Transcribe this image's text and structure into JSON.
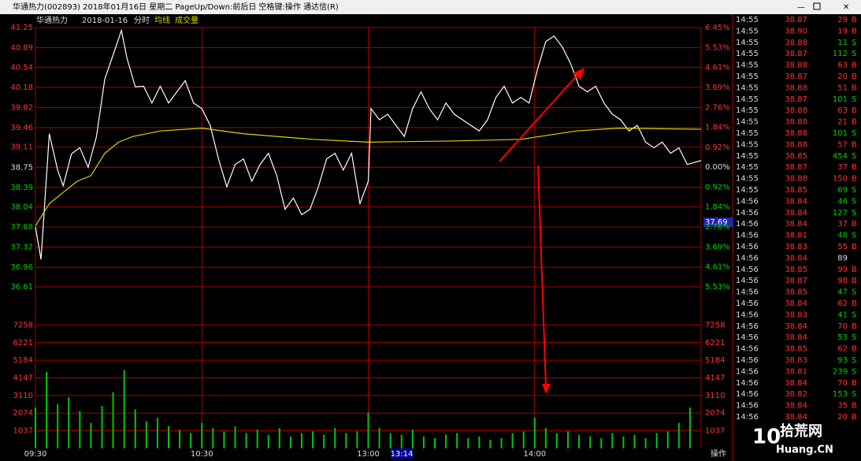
{
  "window_title": "华通热力(002893) 2018年01月16日 星期二 PageUp/Down:前后日 空格键:操作 通达信(R)",
  "legend": {
    "name": "华通热力",
    "date": "2018-01-16",
    "mode": "分时",
    "avg_label": "均线",
    "vol_label": "成交量"
  },
  "cursor_time": "13:14",
  "price_marker": "37.69",
  "op_button": "操作",
  "watermark": {
    "num": "10",
    "text": "拾荒网",
    "site": "Huang.CN"
  },
  "chart_data": [
    {
      "type": "line",
      "xlim": [
        0,
        240
      ],
      "xticks": [
        {
          "value": 0,
          "label": "09:30"
        },
        {
          "value": 60,
          "label": "10:30"
        },
        {
          "value": 120,
          "label": "13:00"
        },
        {
          "value": 180,
          "label": "14:00"
        }
      ],
      "ylim": [
        36.61,
        41.25
      ],
      "yticks": [
        41.25,
        40.89,
        40.54,
        40.18,
        39.82,
        39.46,
        39.11,
        38.75,
        38.39,
        38.04,
        37.68,
        37.32,
        36.96,
        36.61
      ],
      "y2lim": [
        -5.53,
        6.45
      ],
      "y2ticks": [
        {
          "value": 6.45,
          "label": "6.45%"
        },
        {
          "value": 5.53,
          "label": "5.53%"
        },
        {
          "value": 4.61,
          "label": "4.61%"
        },
        {
          "value": 3.69,
          "label": "3.69%"
        },
        {
          "value": 2.76,
          "label": "2.76%"
        },
        {
          "value": 1.84,
          "label": "1.84%"
        },
        {
          "value": 0.92,
          "label": "0.92%"
        },
        {
          "value": 0,
          "label": "0.00%"
        },
        {
          "value": -0.92,
          "label": "0.92%"
        },
        {
          "value": -1.84,
          "label": "1.84%"
        },
        {
          "value": -2.76,
          "label": "2.76%"
        },
        {
          "value": -3.69,
          "label": "3.69%"
        },
        {
          "value": -4.61,
          "label": "4.61%"
        },
        {
          "value": -5.53,
          "label": "5.53%"
        }
      ],
      "series": [
        {
          "name": "price",
          "color": "#ffffff",
          "x": [
            0,
            2,
            5,
            8,
            10,
            13,
            16,
            19,
            22,
            25,
            28,
            31,
            33,
            36,
            39,
            42,
            45,
            48,
            51,
            54,
            57,
            60,
            63,
            66,
            69,
            72,
            75,
            78,
            81,
            84,
            87,
            90,
            93,
            96,
            99,
            102,
            105,
            108,
            111,
            114,
            117,
            120,
            121,
            124,
            127,
            130,
            133,
            136,
            139,
            142,
            145,
            148,
            151,
            154,
            157,
            160,
            163,
            166,
            169,
            172,
            175,
            178,
            181,
            184,
            187,
            190,
            193,
            196,
            199,
            202,
            205,
            208,
            211,
            214,
            217,
            220,
            223,
            226,
            229,
            232,
            235,
            240
          ],
          "values": [
            37.68,
            37.1,
            39.35,
            38.7,
            38.42,
            38.99,
            39.1,
            38.75,
            39.3,
            40.33,
            40.76,
            41.2,
            40.7,
            40.19,
            40.2,
            39.9,
            40.2,
            39.9,
            40.1,
            40.3,
            39.9,
            39.8,
            39.5,
            38.9,
            38.4,
            38.8,
            38.9,
            38.5,
            38.8,
            39.0,
            38.6,
            38.0,
            38.2,
            37.9,
            38.0,
            38.4,
            38.9,
            39.0,
            38.7,
            39.0,
            38.1,
            38.5,
            39.8,
            39.6,
            39.7,
            39.5,
            39.3,
            39.8,
            40.1,
            39.8,
            39.6,
            39.9,
            39.7,
            39.6,
            39.5,
            39.4,
            39.6,
            40.0,
            40.2,
            39.9,
            40.0,
            39.9,
            40.5,
            41.0,
            41.1,
            40.9,
            40.6,
            40.2,
            40.1,
            40.2,
            39.9,
            39.7,
            39.6,
            39.4,
            39.5,
            39.2,
            39.1,
            39.2,
            39.0,
            39.1,
            38.8,
            38.87
          ]
        },
        {
          "name": "均线",
          "color": "#d8d800",
          "x": [
            0,
            5,
            10,
            15,
            20,
            25,
            30,
            35,
            45,
            60,
            75,
            100,
            120,
            150,
            175,
            195,
            210,
            240
          ],
          "values": [
            37.7,
            38.1,
            38.3,
            38.5,
            38.6,
            39.0,
            39.2,
            39.3,
            39.4,
            39.45,
            39.35,
            39.25,
            39.2,
            39.22,
            39.25,
            39.4,
            39.45,
            39.43
          ]
        }
      ]
    },
    {
      "type": "bar",
      "color": "#00c800",
      "xlim": [
        0,
        240
      ],
      "ylim": [
        0,
        8295
      ],
      "yticks": [
        7258,
        6221,
        5184,
        4147,
        3110,
        2074,
        1037
      ],
      "x": [
        0,
        4,
        8,
        12,
        16,
        20,
        24,
        28,
        32,
        36,
        40,
        44,
        48,
        52,
        56,
        60,
        64,
        68,
        72,
        76,
        80,
        84,
        88,
        92,
        96,
        100,
        104,
        108,
        112,
        116,
        120,
        124,
        128,
        132,
        136,
        140,
        144,
        148,
        152,
        156,
        160,
        164,
        168,
        172,
        176,
        180,
        184,
        188,
        192,
        196,
        200,
        204,
        208,
        212,
        216,
        220,
        224,
        228,
        232,
        236
      ],
      "values": [
        2400,
        4500,
        2600,
        3000,
        2200,
        1500,
        2500,
        3300,
        4600,
        2300,
        1600,
        1800,
        1300,
        1100,
        900,
        1500,
        1200,
        1000,
        1300,
        900,
        1100,
        800,
        1200,
        700,
        900,
        1000,
        800,
        1200,
        900,
        1000,
        2100,
        1200,
        900,
        800,
        1100,
        700,
        600,
        800,
        900,
        600,
        700,
        500,
        600,
        900,
        1000,
        1800,
        1200,
        900,
        1000,
        800,
        700,
        600,
        900,
        700,
        800,
        600,
        900,
        1000,
        1500,
        2400
      ]
    }
  ],
  "trades": {
    "rows": [
      [
        "14:55",
        "38.87",
        "29",
        "B"
      ],
      [
        "14:55",
        "38.90",
        "19",
        "B"
      ],
      [
        "14:55",
        "38.88",
        "11",
        "S"
      ],
      [
        "14:55",
        "38.87",
        "112",
        "S"
      ],
      [
        "14:55",
        "38.88",
        "63",
        "B"
      ],
      [
        "14:55",
        "38.87",
        "20",
        "B"
      ],
      [
        "14:55",
        "38.88",
        "51",
        "B"
      ],
      [
        "14:55",
        "38.87",
        "101",
        "S"
      ],
      [
        "14:55",
        "38.88",
        "63",
        "B"
      ],
      [
        "14:55",
        "38.88",
        "21",
        "B"
      ],
      [
        "14:55",
        "38.88",
        "101",
        "S"
      ],
      [
        "14:55",
        "38.88",
        "57",
        "B"
      ],
      [
        "14:55",
        "38.85",
        "454",
        "S"
      ],
      [
        "14:55",
        "38.87",
        "37",
        "B"
      ],
      [
        "14:55",
        "38.88",
        "150",
        "B"
      ],
      [
        "14:55",
        "38.85",
        "69",
        "S"
      ],
      [
        "14:56",
        "38.84",
        "46",
        "S"
      ],
      [
        "14:56",
        "38.84",
        "127",
        "S"
      ],
      [
        "14:56",
        "38.84",
        "37",
        "B"
      ],
      [
        "14:56",
        "38.81",
        "48",
        "S"
      ],
      [
        "14:56",
        "38.83",
        "55",
        "B"
      ],
      [
        "14:56",
        "38.84",
        "89"
      ],
      [
        "14:56",
        "38.85",
        "99",
        "B"
      ],
      [
        "14:56",
        "38.87",
        "98",
        "B"
      ],
      [
        "14:56",
        "38.85",
        "47",
        "S"
      ],
      [
        "14:56",
        "38.84",
        "62",
        "B"
      ],
      [
        "14:56",
        "38.83",
        "41",
        "S"
      ],
      [
        "14:56",
        "38.84",
        "70",
        "B"
      ],
      [
        "14:56",
        "38.84",
        "53",
        "S"
      ],
      [
        "14:56",
        "38.85",
        "62",
        "B"
      ],
      [
        "14:56",
        "38.83",
        "93",
        "S"
      ],
      [
        "14:56",
        "38.81",
        "239",
        "S"
      ],
      [
        "14:56",
        "38.84",
        "70",
        "B"
      ],
      [
        "14:56",
        "38.82",
        "153",
        "S"
      ],
      [
        "14:56",
        "38.84",
        "35",
        "B"
      ],
      [
        "14:56",
        "38.84",
        "20",
        "B"
      ]
    ]
  }
}
